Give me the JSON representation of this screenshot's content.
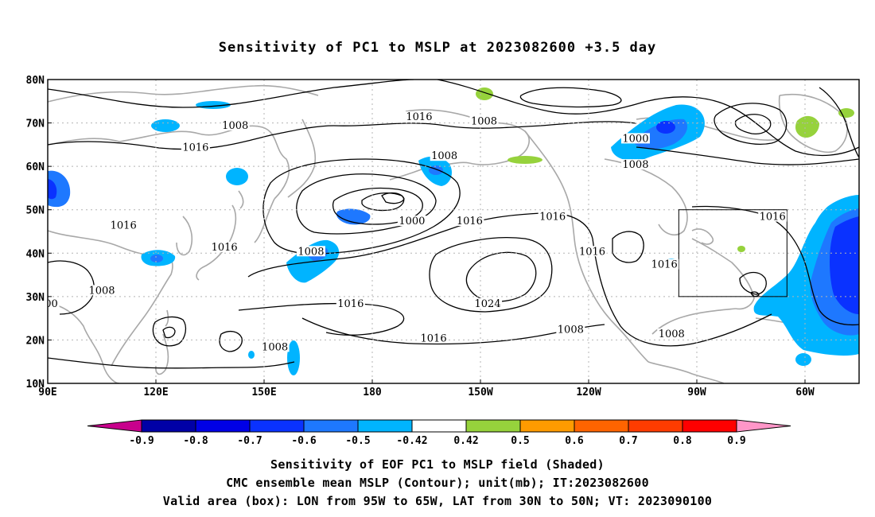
{
  "title": "Sensitivity of PC1 to MSLP at 2023082600 +3.5 day",
  "map": {
    "lat_labels": [
      "80N",
      "70N",
      "60N",
      "50N",
      "40N",
      "30N",
      "20N",
      "10N"
    ],
    "lon_labels": [
      "90E",
      "120E",
      "150E",
      "180",
      "150W",
      "120W",
      "90W",
      "60W"
    ],
    "contour_labels": [
      {
        "text": "1008",
        "lon": 142,
        "lat": 69
      },
      {
        "text": "1016",
        "lon": 131,
        "lat": 64
      },
      {
        "text": "1016",
        "lon": 193,
        "lat": 71
      },
      {
        "text": "1008",
        "lon": 211,
        "lat": 70
      },
      {
        "text": "1000",
        "lon": 253,
        "lat": 66
      },
      {
        "text": "1008",
        "lon": 253,
        "lat": 60
      },
      {
        "text": "1008",
        "lon": 200,
        "lat": 62
      },
      {
        "text": "1000",
        "lon": 191,
        "lat": 47
      },
      {
        "text": "1016",
        "lon": 207,
        "lat": 47
      },
      {
        "text": "1016",
        "lon": 111,
        "lat": 46
      },
      {
        "text": "1016",
        "lon": 139,
        "lat": 41
      },
      {
        "text": "1008",
        "lon": 163,
        "lat": 40
      },
      {
        "text": "1008",
        "lon": 105,
        "lat": 31
      },
      {
        "text": "00",
        "lon": 91,
        "lat": 28
      },
      {
        "text": "1016",
        "lon": 174,
        "lat": 28
      },
      {
        "text": "1024",
        "lon": 212,
        "lat": 28
      },
      {
        "text": "1016",
        "lon": 230,
        "lat": 48
      },
      {
        "text": "1016",
        "lon": 241,
        "lat": 40
      },
      {
        "text": "1016",
        "lon": 261,
        "lat": 37
      },
      {
        "text": "1016",
        "lon": 291,
        "lat": 48
      },
      {
        "text": "1008",
        "lon": 235,
        "lat": 22
      },
      {
        "text": "1008",
        "lon": 263,
        "lat": 21
      },
      {
        "text": "1016",
        "lon": 197,
        "lat": 20
      },
      {
        "text": "1008",
        "lon": 153,
        "lat": 18
      }
    ],
    "valid_box": {
      "lon_from": 265,
      "lon_to": 295,
      "lat_from": 30,
      "lat_to": 50
    }
  },
  "colorbar": {
    "labels": [
      "-0.9",
      "-0.8",
      "-0.7",
      "-0.6",
      "-0.5",
      "-0.42",
      "0.42",
      "0.5",
      "0.6",
      "0.7",
      "0.8",
      "0.9"
    ],
    "colors": {
      "below_min": "#c8008c",
      "bins": [
        "#0000a6",
        "#0000e6",
        "#0a32ff",
        "#1e78ff",
        "#00b4ff",
        "#ffffff",
        "#96d23c",
        "#ff9b00",
        "#ff6400",
        "#ff3c00",
        "#ff0000"
      ],
      "above_max": "#ff96c8"
    }
  },
  "captions": [
    "Sensitivity of EOF PC1 to MSLP field (Shaded)",
    "CMC ensemble mean MSLP (Contour); unit(mb); IT:2023082600",
    "Valid area (box): LON from 95W to 65W, LAT from 30N to 50N; VT: 2023090100"
  ]
}
